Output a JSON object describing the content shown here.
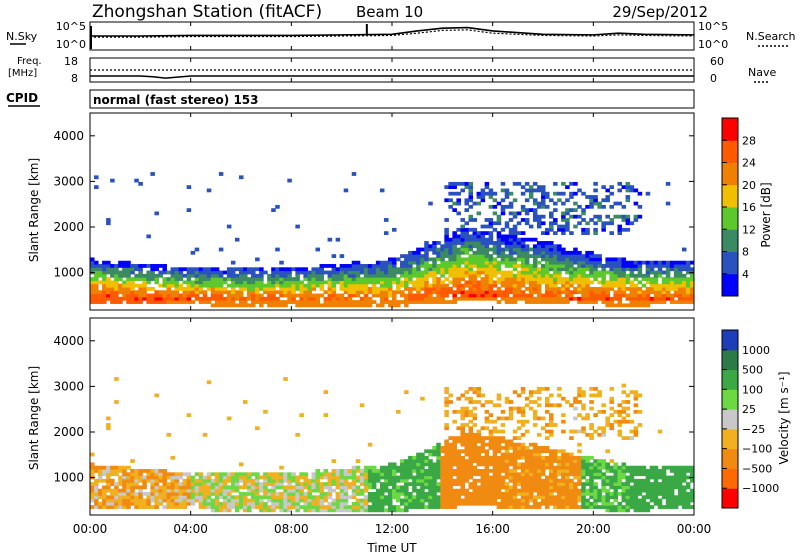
{
  "header": {
    "station": "Zhongshan Station (fitACF)",
    "beam": "Beam 10",
    "date": "29/Sep/2012"
  },
  "noise_panel": {
    "left_label": "N.Sky",
    "right_label": "N.Search",
    "left_ticks": [
      "10^5",
      "10^0"
    ],
    "right_ticks": [
      "10^5",
      "10^0"
    ]
  },
  "freq_panel": {
    "left_label_1": "Freq.",
    "left_label_2": "[MHz]",
    "left_ticks": [
      "18",
      "8"
    ],
    "right_label": "Nave",
    "right_ticks": [
      "60",
      "0"
    ]
  },
  "cpid": {
    "label": "CPID",
    "text": "normal (fast stereo) 153"
  },
  "power_panel": {
    "ylabel": "Slant Range [km]",
    "yticks": [
      "1000",
      "2000",
      "3000",
      "4000"
    ],
    "colorbar_label": "Power [dB]",
    "colorbar_ticks": [
      "4",
      "8",
      "12",
      "16",
      "20",
      "24",
      "28"
    ]
  },
  "velocity_panel": {
    "ylabel": "Slant Range [km]",
    "yticks": [
      "1000",
      "2000",
      "3000",
      "4000"
    ],
    "colorbar_label": "Velocity [m s⁻¹]",
    "colorbar_ticks": [
      "1000",
      "500",
      "100",
      "25",
      "−25",
      "−100",
      "−500",
      "−1000"
    ]
  },
  "xaxis": {
    "label": "Time UT",
    "ticks": [
      "00:00",
      "04:00",
      "08:00",
      "12:00",
      "16:00",
      "20:00",
      "00:00"
    ]
  },
  "colors": {
    "power": [
      "#0000ff",
      "#2a52be",
      "#3c8a64",
      "#5cc82c",
      "#f0c000",
      "#f08000",
      "#ff5a00",
      "#ff0000"
    ],
    "velocity": [
      "#1f3db8",
      "#2c7a4a",
      "#3aa844",
      "#6cd844",
      "#c8c8c8",
      "#f0b020",
      "#f08a10",
      "#ff6a00",
      "#ff0000"
    ]
  },
  "chart_data": [
    {
      "type": "line",
      "title": "N.Sky / N.Search",
      "x": [
        0,
        2,
        4,
        6,
        8,
        10,
        12,
        13,
        14,
        15,
        16,
        18,
        20,
        21,
        22,
        24
      ],
      "series": [
        {
          "name": "N.Sky",
          "values": [
            2.5,
            2.5,
            2.6,
            2.6,
            2.6,
            2.7,
            2.8,
            3.4,
            3.9,
            4.0,
            3.4,
            2.8,
            2.7,
            3.0,
            2.8,
            2.7
          ]
        },
        {
          "name": "N.Search",
          "values": [
            2.3,
            2.3,
            2.4,
            2.4,
            2.4,
            2.5,
            2.6,
            3.0,
            3.5,
            3.6,
            3.0,
            2.6,
            2.5,
            2.7,
            2.6,
            2.5
          ]
        }
      ],
      "xlim": [
        0,
        24
      ],
      "ylim": [
        0,
        5
      ],
      "yscale": "log"
    },
    {
      "type": "line",
      "title": "Freq / Nave",
      "x": [
        0,
        2,
        2.5,
        3,
        4,
        8,
        12,
        16,
        20,
        24
      ],
      "series": [
        {
          "name": "Freq.",
          "values": [
            10.5,
            10.5,
            10.2,
            9.6,
            10.5,
            10.5,
            10.5,
            10.5,
            10.5,
            10.5
          ]
        },
        {
          "name": "Nave",
          "values": [
            30,
            30,
            30,
            30,
            30,
            30,
            30,
            30,
            30,
            30
          ]
        }
      ],
      "xlim": [
        0,
        24
      ],
      "ylim": [
        8,
        18
      ]
    },
    {
      "type": "heatmap",
      "title": "Power",
      "xlabel": "Time UT",
      "ylabel": "Slant Range [km]",
      "xlim": [
        0,
        24
      ],
      "ylim": [
        180,
        4500
      ],
      "colorbar": {
        "label": "Power [dB]",
        "range": [
          0,
          32
        ],
        "ticks": [
          4,
          8,
          12,
          16,
          20,
          24,
          28
        ]
      },
      "lower_band_km": [
        [
          0,
          450,
          1300
        ],
        [
          3,
          420,
          1150
        ],
        [
          6,
          400,
          1100
        ],
        [
          9,
          380,
          1150
        ],
        [
          12,
          380,
          1300
        ],
        [
          15,
          500,
          2000
        ],
        [
          18,
          450,
          1700
        ],
        [
          21,
          400,
          1300
        ],
        [
          24,
          420,
          1250
        ]
      ],
      "peak_db": [
        [
          0,
          28
        ],
        [
          3,
          28
        ],
        [
          6,
          26
        ],
        [
          9,
          27
        ],
        [
          12,
          25
        ],
        [
          15,
          28
        ],
        [
          18,
          26
        ],
        [
          21,
          27
        ],
        [
          24,
          26
        ]
      ],
      "scattered_echo_region": {
        "x": [
          14,
          22
        ],
        "range_km": [
          1800,
          3000
        ],
        "db": 6
      }
    },
    {
      "type": "heatmap",
      "title": "Velocity",
      "xlabel": "Time UT",
      "ylabel": "Slant Range [km]",
      "xlim": [
        0,
        24
      ],
      "ylim": [
        180,
        4500
      ],
      "colorbar": {
        "label": "Velocity [m s-1]",
        "ticks": [
          1000,
          500,
          100,
          25,
          -25,
          -100,
          -500,
          -1000
        ]
      },
      "velocity_segments": [
        [
          0,
          4,
          -80
        ],
        [
          4,
          9,
          0
        ],
        [
          9,
          11,
          0
        ],
        [
          11,
          14,
          150
        ],
        [
          14,
          16.5,
          -300
        ],
        [
          16.5,
          19.5,
          -150
        ],
        [
          19.5,
          21.5,
          120
        ],
        [
          21.5,
          24,
          400
        ]
      ]
    }
  ]
}
